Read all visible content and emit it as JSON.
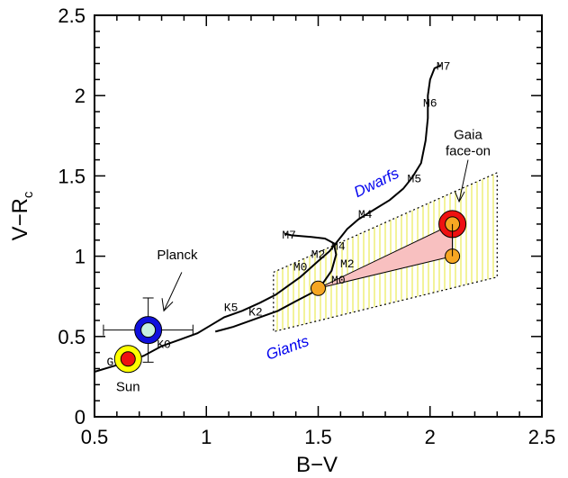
{
  "chart_data": {
    "type": "scatter",
    "xlabel": "B−V",
    "ylabel": "V−R",
    "ylabel_sub": "c",
    "xlim": [
      0.5,
      2.5
    ],
    "ylim": [
      0,
      2.5
    ],
    "xticks": [
      0.5,
      1,
      1.5,
      2,
      2.5
    ],
    "xtick_labels": [
      "0.5",
      "1",
      "1.5",
      "2",
      "2.5"
    ],
    "yticks": [
      0,
      0.5,
      1,
      1.5,
      2,
      2.5
    ],
    "ytick_labels": [
      "0",
      "0.5",
      "1",
      "1.5",
      "2",
      "2.5"
    ],
    "grid": false,
    "series": [
      {
        "name": "Dwarfs",
        "points": [
          [
            0.5,
            0.28
          ],
          [
            0.62,
            0.33
          ],
          [
            0.72,
            0.38
          ],
          [
            0.8,
            0.44
          ],
          [
            0.88,
            0.48
          ],
          [
            0.96,
            0.52
          ],
          [
            1.02,
            0.57
          ],
          [
            1.08,
            0.62
          ],
          [
            1.16,
            0.66
          ],
          [
            1.24,
            0.71
          ],
          [
            1.31,
            0.76
          ],
          [
            1.37,
            0.82
          ],
          [
            1.42,
            0.87
          ],
          [
            1.46,
            0.92
          ],
          [
            1.5,
            0.97
          ],
          [
            1.55,
            1.03
          ],
          [
            1.59,
            1.1
          ],
          [
            1.63,
            1.17
          ],
          [
            1.68,
            1.23
          ],
          [
            1.75,
            1.29
          ],
          [
            1.82,
            1.35
          ],
          [
            1.88,
            1.42
          ],
          [
            1.92,
            1.49
          ],
          [
            1.96,
            1.58
          ],
          [
            1.98,
            1.72
          ],
          [
            1.99,
            1.86
          ],
          [
            1.99,
            2.0
          ],
          [
            2.0,
            2.1
          ],
          [
            2.02,
            2.17
          ],
          [
            2.05,
            2.19
          ]
        ]
      },
      {
        "name": "Giants",
        "points": [
          [
            1.04,
            0.53
          ],
          [
            1.12,
            0.56
          ],
          [
            1.22,
            0.61
          ],
          [
            1.32,
            0.66
          ],
          [
            1.4,
            0.72
          ],
          [
            1.47,
            0.77
          ],
          [
            1.52,
            0.83
          ],
          [
            1.56,
            0.91
          ],
          [
            1.58,
            1.01
          ],
          [
            1.57,
            1.08
          ],
          [
            1.53,
            1.11
          ],
          [
            1.47,
            1.12
          ],
          [
            1.38,
            1.13
          ],
          [
            1.35,
            1.14
          ]
        ]
      }
    ],
    "spectral_labels": [
      {
        "text": "G",
        "x": 0.57,
        "y": 0.32
      },
      {
        "text": "K0",
        "x": 0.81,
        "y": 0.43
      },
      {
        "text": "K5",
        "x": 1.11,
        "y": 0.66
      },
      {
        "text": "K2",
        "x": 1.22,
        "y": 0.63
      },
      {
        "text": "M0",
        "x": 1.42,
        "y": 0.91
      },
      {
        "text": "M2",
        "x": 1.5,
        "y": 0.99
      },
      {
        "text": "M4",
        "x": 1.59,
        "y": 1.04
      },
      {
        "text": "M7",
        "x": 1.37,
        "y": 1.11
      },
      {
        "text": "M0",
        "x": 1.59,
        "y": 0.83
      },
      {
        "text": "M2",
        "x": 1.63,
        "y": 0.93
      },
      {
        "text": "M4",
        "x": 1.71,
        "y": 1.24
      },
      {
        "text": "M5",
        "x": 1.93,
        "y": 1.46
      },
      {
        "text": "M6",
        "x": 2.0,
        "y": 1.93
      },
      {
        "text": "M7",
        "x": 2.06,
        "y": 2.16
      }
    ],
    "region_labels": [
      {
        "text": "Dwarfs",
        "x": 1.77,
        "y": 1.43,
        "rotate": -26
      },
      {
        "text": "Giants",
        "x": 1.37,
        "y": 0.4,
        "rotate": -20
      }
    ],
    "gaia_region": [
      [
        1.3,
        0.9
      ],
      [
        2.3,
        1.52
      ],
      [
        2.3,
        0.87
      ],
      [
        1.3,
        0.53
      ]
    ],
    "planck": {
      "label": "Planck",
      "x": 0.74,
      "y": 0.54,
      "xerr": 0.2,
      "yerr": 0.2,
      "color_outer": "#1010dd",
      "color_inner": "#c8f0e0"
    },
    "planck_label": {
      "text": "Planck",
      "x": 0.87,
      "y": 0.98
    },
    "sun": {
      "label": "Sun",
      "x": 0.65,
      "y": 0.36,
      "color_outer": "#ffff00",
      "color_inner": "#ee1111"
    },
    "sun_label": {
      "text": "Sun",
      "x": 0.65,
      "y": 0.16
    },
    "gaia_points": [
      {
        "x": 1.5,
        "y": 0.8,
        "color": "#f6a623"
      },
      {
        "x": 2.1,
        "y": 1.0,
        "color": "#f6a623"
      },
      {
        "x": 2.1,
        "y": 1.2,
        "color": "#f6a623",
        "ring": "#ee1111"
      }
    ],
    "gaia_label": {
      "line1": "Gaia",
      "line2": "face-on",
      "x": 2.17,
      "y": 1.73
    }
  }
}
